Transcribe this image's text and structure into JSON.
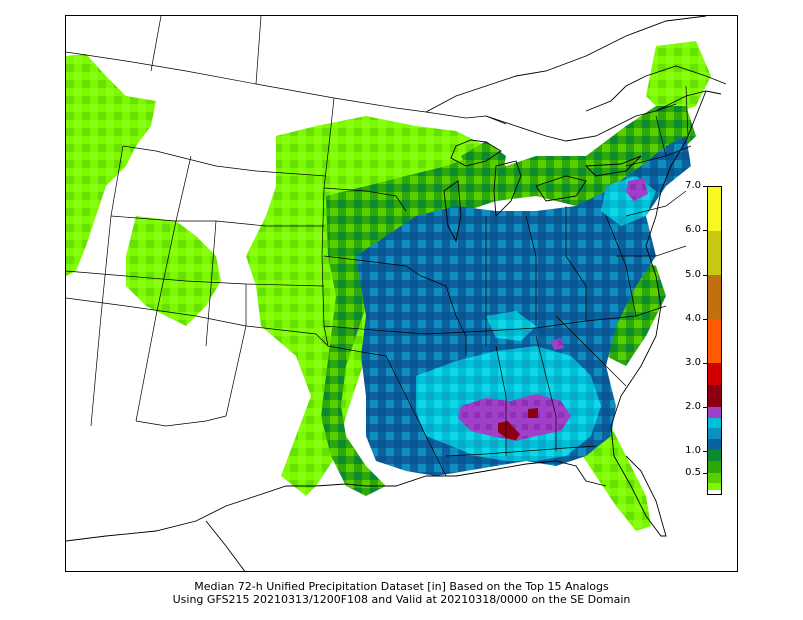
{
  "caption": {
    "line1": "Median 72-h Unified Precipitation Dataset [in] Based on the Top 15 Analogs",
    "line2": "Using GFS215 20210313/1200F108 and Valid at 20210318/0000 on the SE Domain"
  },
  "legend": {
    "unit": "in",
    "ticks": [
      {
        "value": 0.5,
        "label": "0.5"
      },
      {
        "value": 1.0,
        "label": "1.0"
      },
      {
        "value": 2.0,
        "label": "2.0"
      },
      {
        "value": 3.0,
        "label": "3.0"
      },
      {
        "value": 4.0,
        "label": "4.0"
      },
      {
        "value": 5.0,
        "label": "5.0"
      },
      {
        "value": 6.0,
        "label": "6.0"
      },
      {
        "value": 7.0,
        "label": "7.0"
      }
    ],
    "bins": [
      {
        "min": 0.0,
        "max": 0.1,
        "color": "#ffffff"
      },
      {
        "min": 0.1,
        "max": 0.25,
        "color": "#7cf800"
      },
      {
        "min": 0.25,
        "max": 0.5,
        "color": "#58d000"
      },
      {
        "min": 0.5,
        "max": 0.75,
        "color": "#2ea808"
      },
      {
        "min": 0.75,
        "max": 1.0,
        "color": "#0c8a30"
      },
      {
        "min": 1.0,
        "max": 1.25,
        "color": "#0b62a0"
      },
      {
        "min": 1.25,
        "max": 1.5,
        "color": "#0e8fc0"
      },
      {
        "min": 1.5,
        "max": 1.75,
        "color": "#00c0d8"
      },
      {
        "min": 1.75,
        "max": 2.0,
        "color": "#a040c8"
      },
      {
        "min": 2.0,
        "max": 2.5,
        "color": "#8a0010"
      },
      {
        "min": 2.5,
        "max": 3.0,
        "color": "#d00000"
      },
      {
        "min": 3.0,
        "max": 4.0,
        "color": "#ff5a00"
      },
      {
        "min": 4.0,
        "max": 5.0,
        "color": "#c07010"
      },
      {
        "min": 5.0,
        "max": 6.0,
        "color": "#c8c810"
      },
      {
        "min": 6.0,
        "max": 7.0,
        "color": "#f8f820"
      }
    ]
  },
  "map": {
    "type": "precipitation-raster",
    "region": "Eastern and Central United States",
    "colors": {
      "land": "#ffffff",
      "boundary": "#000000"
    },
    "precip_regions": [
      {
        "level": 0.25,
        "color": "#7cf800",
        "area": "Northern Plains and Upper Midwest"
      },
      {
        "level": 0.25,
        "color": "#7cf800",
        "area": "Colorado Rockies"
      },
      {
        "level": 0.25,
        "color": "#7cf800",
        "area": "Southern Plains"
      },
      {
        "level": 0.5,
        "color": "#2ea808",
        "area": "Great Lakes and Northeast"
      },
      {
        "level": 1.0,
        "color": "#0b62a0",
        "area": "Mississippi and Ohio Valleys"
      },
      {
        "level": 1.5,
        "color": "#00c0d8",
        "area": "Deep South"
      },
      {
        "level": 1.75,
        "color": "#a040c8",
        "area": "Alabama and Georgia"
      },
      {
        "level": 2.0,
        "color": "#8a0010",
        "area": "Southeast Alabama"
      }
    ]
  }
}
